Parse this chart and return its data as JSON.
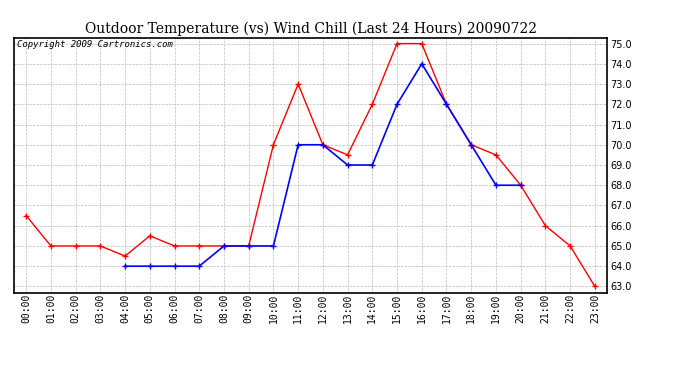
{
  "title": "Outdoor Temperature (vs) Wind Chill (Last 24 Hours) 20090722",
  "copyright_text": "Copyright 2009 Cartronics.com",
  "x_labels": [
    "00:00",
    "01:00",
    "02:00",
    "03:00",
    "04:00",
    "05:00",
    "06:00",
    "07:00",
    "08:00",
    "09:00",
    "10:00",
    "11:00",
    "12:00",
    "13:00",
    "14:00",
    "15:00",
    "16:00",
    "17:00",
    "18:00",
    "19:00",
    "20:00",
    "21:00",
    "22:00",
    "23:00"
  ],
  "outdoor_temp": [
    66.5,
    65.0,
    65.0,
    65.0,
    64.5,
    65.5,
    65.0,
    65.0,
    65.0,
    65.0,
    70.0,
    73.0,
    70.0,
    69.5,
    72.0,
    75.0,
    75.0,
    72.0,
    70.0,
    69.5,
    68.0,
    66.0,
    65.0,
    63.0
  ],
  "wind_chill": [
    null,
    null,
    null,
    null,
    64.0,
    64.0,
    64.0,
    64.0,
    65.0,
    65.0,
    65.0,
    70.0,
    70.0,
    69.0,
    69.0,
    72.0,
    74.0,
    72.0,
    70.0,
    68.0,
    68.0,
    null,
    null,
    null
  ],
  "temp_color": "#FF0000",
  "wind_color": "#0000FF",
  "bg_color": "#FFFFFF",
  "plot_bg_color": "#FFFFFF",
  "grid_color": "#BBBBBB",
  "ylim_min": 63.0,
  "ylim_max": 75.0,
  "ytick_step": 1.0,
  "title_fontsize": 10,
  "axis_fontsize": 7,
  "copyright_fontsize": 6.5
}
